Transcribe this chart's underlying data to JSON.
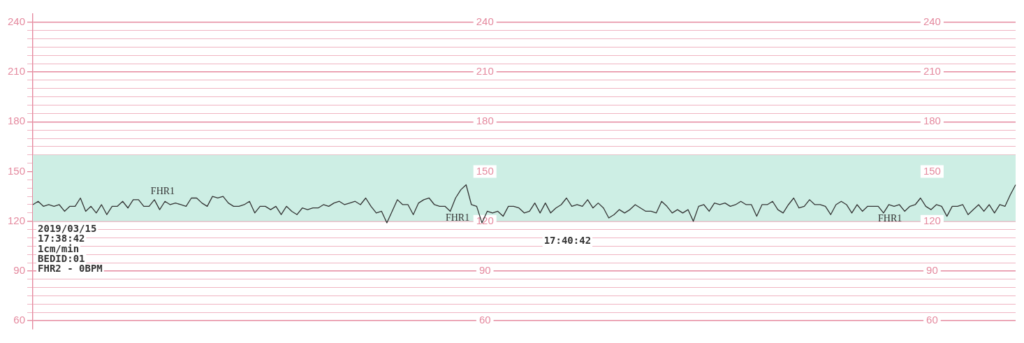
{
  "chart_data": {
    "type": "line",
    "categories": [
      null,
      null,
      null,
      null,
      null,
      null,
      null,
      null,
      null,
      null,
      null,
      null,
      null,
      null,
      null,
      null,
      null,
      null,
      null,
      null,
      null,
      null,
      null,
      null,
      null,
      null,
      null,
      null,
      null,
      null,
      null,
      null,
      null,
      null,
      null,
      null,
      null,
      null,
      null,
      null,
      null,
      null,
      null,
      null,
      null,
      null,
      null,
      null,
      null,
      null,
      null,
      null,
      null,
      null,
      null,
      null,
      null,
      null,
      null,
      null,
      null,
      null,
      null,
      null,
      null,
      null,
      null,
      null,
      null,
      null,
      null,
      null,
      null,
      null,
      null,
      null,
      null,
      null,
      null,
      null,
      null,
      null,
      null,
      null,
      null,
      null,
      null,
      null,
      null,
      null,
      null,
      null,
      null,
      null,
      null,
      null,
      null,
      null,
      null,
      null,
      null,
      null,
      null,
      null,
      null,
      null,
      null,
      null,
      null,
      null,
      null,
      null,
      null,
      null,
      null,
      null,
      null,
      null,
      null,
      null,
      null,
      null,
      null,
      null,
      null,
      null,
      null,
      null,
      null,
      null,
      null,
      null,
      null,
      null,
      null,
      null,
      null,
      null,
      null,
      null,
      null,
      null,
      null,
      null,
      null,
      null,
      null,
      null,
      null,
      null,
      null,
      null,
      null,
      null,
      null,
      null,
      null,
      null,
      null,
      null,
      null,
      null,
      null,
      null,
      null,
      null,
      null,
      null,
      null,
      null,
      null,
      null,
      null,
      null,
      null,
      null,
      null,
      null,
      null,
      null,
      null,
      null,
      null,
      null,
      null,
      null,
      null
    ],
    "series": [
      {
        "name": null,
        "color": "#333333",
        "values": [
          130,
          132,
          129,
          130,
          129,
          130,
          126,
          129,
          129,
          134,
          126,
          129,
          125,
          130,
          124,
          129,
          129,
          132,
          128,
          133,
          133,
          129,
          129,
          133,
          127,
          132,
          130,
          131,
          130,
          129,
          134,
          134,
          131,
          129,
          135,
          134,
          135,
          131,
          129,
          129,
          130,
          132,
          125,
          129,
          129,
          127,
          129,
          124,
          129,
          126,
          124,
          128,
          127,
          128,
          128,
          130,
          129,
          131,
          132,
          130,
          131,
          132,
          130,
          134,
          129,
          125,
          126,
          119,
          126,
          133,
          130,
          130,
          124,
          131,
          133,
          134,
          130,
          129,
          129,
          126,
          134,
          139,
          142,
          130,
          129,
          119,
          126,
          125,
          126,
          123,
          129,
          129,
          128,
          125,
          126,
          131,
          125,
          131,
          125,
          128,
          130,
          134,
          129,
          130,
          129,
          133,
          128,
          131,
          128,
          122,
          124,
          127,
          125,
          127,
          130,
          128,
          126,
          126,
          125,
          132,
          129,
          125,
          127,
          125,
          127,
          120,
          129,
          130,
          126,
          131,
          130,
          131,
          129,
          130,
          132,
          130,
          130,
          123,
          130,
          130,
          132,
          127,
          125,
          130,
          134,
          128,
          129,
          133,
          130,
          130,
          129,
          124,
          130,
          132,
          130,
          125,
          130,
          126,
          129,
          129,
          129,
          125,
          130,
          129,
          130,
          126,
          129,
          130,
          134,
          129,
          127,
          130,
          129,
          123,
          129,
          129,
          130,
          124,
          127,
          130,
          126,
          130,
          125,
          130,
          129,
          136,
          142
        ]
      }
    ],
    "ylim": [
      55,
      245
    ],
    "yticks": [
      {
        "value": 60,
        "label": "60"
      },
      {
        "value": 65,
        "label": null
      },
      {
        "value": 70,
        "label": null
      },
      {
        "value": 75,
        "label": null
      },
      {
        "value": 80,
        "label": null
      },
      {
        "value": 85,
        "label": null
      },
      {
        "value": 90,
        "label": "90"
      },
      {
        "value": 95,
        "label": null
      },
      {
        "value": 100,
        "label": null
      },
      {
        "value": 105,
        "label": null
      },
      {
        "value": 110,
        "label": null
      },
      {
        "value": 115,
        "label": null
      },
      {
        "value": 120,
        "label": "120"
      },
      {
        "value": 125,
        "label": null
      },
      {
        "value": 130,
        "label": null
      },
      {
        "value": 135,
        "label": null
      },
      {
        "value": 140,
        "label": null
      },
      {
        "value": 145,
        "label": null
      },
      {
        "value": 150,
        "label": "150"
      },
      {
        "value": 155,
        "label": null
      },
      {
        "value": 160,
        "label": null
      },
      {
        "value": 165,
        "label": null
      },
      {
        "value": 170,
        "label": null
      },
      {
        "value": 175,
        "label": null
      },
      {
        "value": 180,
        "label": "180"
      },
      {
        "value": 185,
        "label": null
      },
      {
        "value": 190,
        "label": null
      },
      {
        "value": 195,
        "label": null
      },
      {
        "value": 200,
        "label": null
      },
      {
        "value": 205,
        "label": null
      },
      {
        "value": 210,
        "label": "210"
      },
      {
        "value": 215,
        "label": null
      },
      {
        "value": 220,
        "label": null
      },
      {
        "value": 225,
        "label": null
      },
      {
        "value": 230,
        "label": null
      },
      {
        "value": 235,
        "label": null
      },
      {
        "value": 240,
        "label": "240"
      }
    ],
    "bands": [
      {
        "axis": "y",
        "from": 120,
        "to": 160,
        "color": "#cdeee4"
      }
    ],
    "grid": "y",
    "tick_labels": "y",
    "legend": false,
    "marker": "none",
    "line_style": "solid",
    "annotations": [
      "FHR1",
      "FHR1",
      "FHR1",
      "2019/03/15",
      "17:38:42",
      "1cm/min",
      "BEDID:01",
      "FHR2 - 0BPM",
      "17:40:42"
    ]
  }
}
